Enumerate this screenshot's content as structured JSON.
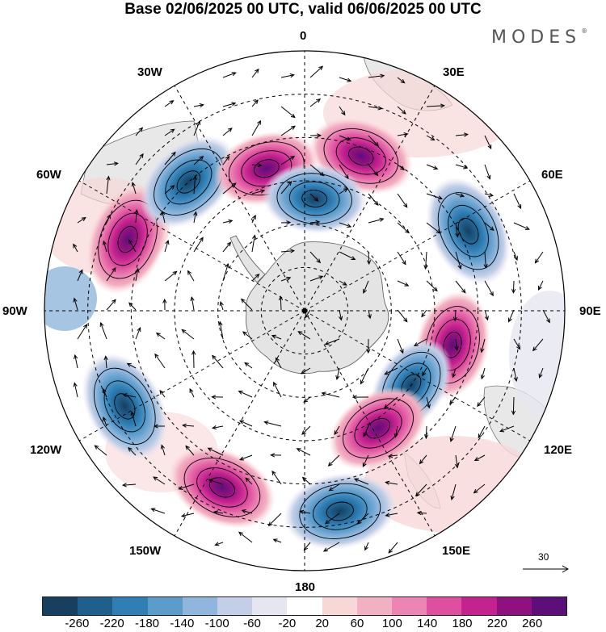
{
  "title": "Base 02/06/2025 00 UTC, valid 06/06/2025 00 UTC",
  "brand": "MODES",
  "brand_mark": "®",
  "longitude_labels": {
    "lon_0": "0",
    "lon_30e": "30E",
    "lon_60e": "60E",
    "lon_90e": "90E",
    "lon_120e": "120E",
    "lon_150e": "150E",
    "lon_180": "180",
    "lon_150w": "150W",
    "lon_120w": "120W",
    "lon_90w": "90W",
    "lon_60w": "60W",
    "lon_30w": "30W"
  },
  "reference_vector": "30",
  "colorbar": {
    "colors": [
      "#173f5f",
      "#1f5f8b",
      "#2f7fb5",
      "#5b9ccb",
      "#8fb6dc",
      "#c3cfe6",
      "#e6e6f1",
      "#ffffff",
      "#f8d7d7",
      "#f2b1c2",
      "#ec85b3",
      "#df4fa0",
      "#c4228f",
      "#8f107f",
      "#5c0f78"
    ],
    "tick_labels": [
      "-260",
      "-220",
      "-180",
      "-140",
      "-100",
      "-60",
      "-20",
      "20",
      "60",
      "100",
      "140",
      "180",
      "220",
      "260"
    ]
  },
  "anomaly_centers": [
    {
      "name": "positive-anomaly",
      "lon": 20,
      "lat": -52,
      "value": 200
    },
    {
      "name": "negative-anomaly",
      "lon": 64,
      "lat": -48,
      "value": -260
    },
    {
      "name": "positive-anomaly",
      "lon": 103,
      "lat": -55,
      "value": 220
    },
    {
      "name": "negative-anomaly",
      "lon": 125,
      "lat": -60,
      "value": -160
    },
    {
      "name": "positive-anomaly",
      "lon": 148,
      "lat": -58,
      "value": 200
    },
    {
      "name": "negative-anomaly",
      "lon": 170,
      "lat": -43,
      "value": -260
    },
    {
      "name": "positive-anomaly",
      "lon": 205,
      "lat": -45,
      "value": 240
    },
    {
      "name": "negative-anomaly",
      "lon": 242,
      "lat": -43,
      "value": -260
    },
    {
      "name": "positive-anomaly",
      "lon": 292,
      "lat": -46,
      "value": 260
    },
    {
      "name": "negative-anomaly",
      "lon": 318,
      "lat": -50,
      "value": -240
    },
    {
      "name": "positive-anomaly",
      "lon": 345,
      "lat": -56,
      "value": 200
    },
    {
      "name": "negative-anomaly",
      "lon": 5,
      "lat": -64,
      "value": -180
    }
  ]
}
